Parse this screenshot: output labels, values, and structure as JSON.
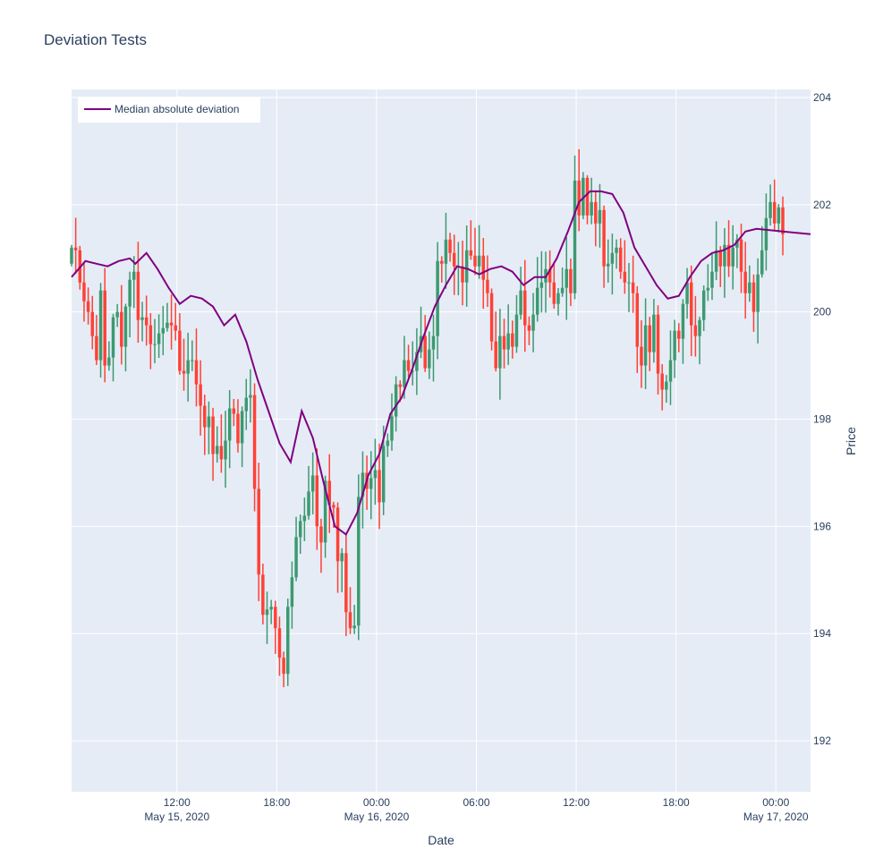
{
  "chart_data": {
    "type": "candlestick",
    "title": "Deviation Tests",
    "xlabel": "Date",
    "ylabel": "Price",
    "y_axis_side": "right",
    "ylim": [
      191.05,
      204.15
    ],
    "y_ticks": [
      192,
      194,
      196,
      198,
      200,
      202,
      204
    ],
    "x_start": "2020-05-15T05:40",
    "x_end": "2020-05-17T02:05",
    "x_ticks": [
      {
        "t": "2020-05-15T12:00",
        "label": "12:00",
        "sublabel": "May 15, 2020"
      },
      {
        "t": "2020-05-15T18:00",
        "label": "18:00",
        "sublabel": ""
      },
      {
        "t": "2020-05-16T00:00",
        "label": "00:00",
        "sublabel": "May 16, 2020"
      },
      {
        "t": "2020-05-16T06:00",
        "label": "06:00",
        "sublabel": ""
      },
      {
        "t": "2020-05-16T12:00",
        "label": "12:00",
        "sublabel": ""
      },
      {
        "t": "2020-05-16T18:00",
        "label": "18:00",
        "sublabel": ""
      },
      {
        "t": "2020-05-17T00:00",
        "label": "00:00",
        "sublabel": "May 17, 2020"
      }
    ],
    "grid": true,
    "legend_placement": "top-left",
    "colors": {
      "increasing": "#3D9970",
      "decreasing": "#FF4136",
      "line": "#800080",
      "plot_bg": "#E5ECF6",
      "grid": "#ffffff"
    },
    "candles": {
      "start": "2020-05-15T05:40",
      "interval_minutes": 15,
      "series_name": "Price",
      "close": [
        201.2,
        201.15,
        200.55,
        200.2,
        200.0,
        199.55,
        199.1,
        200.4,
        199.0,
        199.15,
        199.9,
        200.0,
        199.35,
        200.1,
        200.6,
        200.75,
        199.85,
        199.9,
        199.75,
        199.4,
        199.4,
        199.6,
        199.7,
        199.8,
        199.75,
        199.65,
        198.9,
        198.85,
        199.1,
        199.1,
        198.65,
        198.25,
        197.85,
        198.05,
        197.35,
        197.5,
        197.25,
        197.6,
        198.2,
        198.1,
        197.55,
        198.15,
        198.4,
        198.45,
        196.7,
        195.1,
        194.35,
        194.45,
        194.5,
        194.1,
        193.55,
        193.25,
        194.5,
        195.05,
        195.8,
        196.1,
        196.2,
        196.65,
        196.95,
        196.0,
        195.7,
        196.85,
        196.4,
        196.35,
        195.35,
        195.5,
        194.4,
        194.1,
        194.15,
        196.55,
        197.0,
        196.7,
        196.9,
        197.05,
        196.45,
        197.5,
        197.6,
        198.05,
        198.65,
        198.6,
        199.1,
        198.9,
        198.9,
        199.25,
        199.55,
        198.95,
        199.3,
        199.55,
        200.95,
        200.9,
        201.35,
        201.1,
        200.85,
        200.85,
        200.55,
        201.15,
        201.05,
        200.85,
        201.05,
        200.6,
        200.35,
        199.45,
        198.95,
        199.55,
        199.3,
        199.6,
        199.35,
        199.95,
        200.4,
        199.75,
        199.65,
        199.95,
        200.45,
        200.55,
        200.8,
        200.55,
        200.15,
        200.35,
        200.45,
        200.8,
        200.35,
        202.45,
        201.8,
        202.5,
        201.8,
        202.05,
        201.65,
        201.9,
        200.85,
        200.9,
        201.1,
        201.2,
        200.75,
        200.55,
        200.55,
        200.35,
        199.35,
        199.0,
        199.75,
        199.25,
        199.95,
        198.85,
        198.55,
        198.7,
        199.1,
        199.65,
        199.5,
        200.15,
        200.55,
        199.75,
        199.55,
        199.85,
        200.4,
        200.45,
        200.75,
        201.15,
        200.85,
        201.25,
        200.85,
        201.2,
        201.35,
        200.75,
        200.35,
        200.55,
        200.0,
        200.7,
        201.15,
        201.75,
        202.05,
        201.65,
        201.95,
        201.45
      ]
    },
    "series": [
      {
        "name": "Median absolute deviation",
        "color": "#800080",
        "points": [
          [
            "2020-05-15T05:40",
            200.65
          ],
          [
            "2020-05-15T06:30",
            200.95
          ],
          [
            "2020-05-15T07:10",
            200.9
          ],
          [
            "2020-05-15T07:50",
            200.85
          ],
          [
            "2020-05-15T08:30",
            200.95
          ],
          [
            "2020-05-15T09:10",
            201.0
          ],
          [
            "2020-05-15T09:30",
            200.9
          ],
          [
            "2020-05-15T10:10",
            201.1
          ],
          [
            "2020-05-15T10:50",
            200.8
          ],
          [
            "2020-05-15T11:30",
            200.45
          ],
          [
            "2020-05-15T12:10",
            200.15
          ],
          [
            "2020-05-15T12:50",
            200.3
          ],
          [
            "2020-05-15T13:30",
            200.25
          ],
          [
            "2020-05-15T14:10",
            200.1
          ],
          [
            "2020-05-15T14:50",
            199.75
          ],
          [
            "2020-05-15T15:30",
            199.95
          ],
          [
            "2020-05-15T16:10",
            199.45
          ],
          [
            "2020-05-15T16:50",
            198.75
          ],
          [
            "2020-05-15T17:30",
            198.15
          ],
          [
            "2020-05-15T18:10",
            197.55
          ],
          [
            "2020-05-15T18:50",
            197.2
          ],
          [
            "2020-05-15T19:30",
            198.15
          ],
          [
            "2020-05-15T20:10",
            197.65
          ],
          [
            "2020-05-15T20:50",
            196.8
          ],
          [
            "2020-05-15T21:30",
            196.0
          ],
          [
            "2020-05-15T22:10",
            195.85
          ],
          [
            "2020-05-15T22:50",
            196.25
          ],
          [
            "2020-05-15T23:30",
            196.95
          ],
          [
            "2020-05-16T00:10",
            197.35
          ],
          [
            "2020-05-16T00:50",
            198.1
          ],
          [
            "2020-05-16T01:30",
            198.4
          ],
          [
            "2020-05-16T02:10",
            198.95
          ],
          [
            "2020-05-16T02:50",
            199.55
          ],
          [
            "2020-05-16T03:30",
            200.1
          ],
          [
            "2020-05-16T04:10",
            200.5
          ],
          [
            "2020-05-16T04:50",
            200.85
          ],
          [
            "2020-05-16T05:30",
            200.8
          ],
          [
            "2020-05-16T06:10",
            200.7
          ],
          [
            "2020-05-16T06:50",
            200.8
          ],
          [
            "2020-05-16T07:30",
            200.85
          ],
          [
            "2020-05-16T08:10",
            200.75
          ],
          [
            "2020-05-16T08:50",
            200.5
          ],
          [
            "2020-05-16T09:30",
            200.65
          ],
          [
            "2020-05-16T10:10",
            200.65
          ],
          [
            "2020-05-16T10:50",
            201.0
          ],
          [
            "2020-05-16T11:30",
            201.5
          ],
          [
            "2020-05-16T12:10",
            202.05
          ],
          [
            "2020-05-16T12:50",
            202.25
          ],
          [
            "2020-05-16T13:30",
            202.25
          ],
          [
            "2020-05-16T14:10",
            202.2
          ],
          [
            "2020-05-16T14:50",
            201.85
          ],
          [
            "2020-05-16T15:30",
            201.2
          ],
          [
            "2020-05-16T16:10",
            200.85
          ],
          [
            "2020-05-16T16:50",
            200.5
          ],
          [
            "2020-05-16T17:30",
            200.25
          ],
          [
            "2020-05-16T18:10",
            200.3
          ],
          [
            "2020-05-16T18:50",
            200.65
          ],
          [
            "2020-05-16T19:30",
            200.95
          ],
          [
            "2020-05-16T20:10",
            201.1
          ],
          [
            "2020-05-16T20:50",
            201.15
          ],
          [
            "2020-05-16T21:30",
            201.25
          ],
          [
            "2020-05-16T22:10",
            201.5
          ],
          [
            "2020-05-16T22:50",
            201.55
          ],
          [
            "2020-05-17T02:05",
            201.45
          ]
        ]
      }
    ]
  }
}
